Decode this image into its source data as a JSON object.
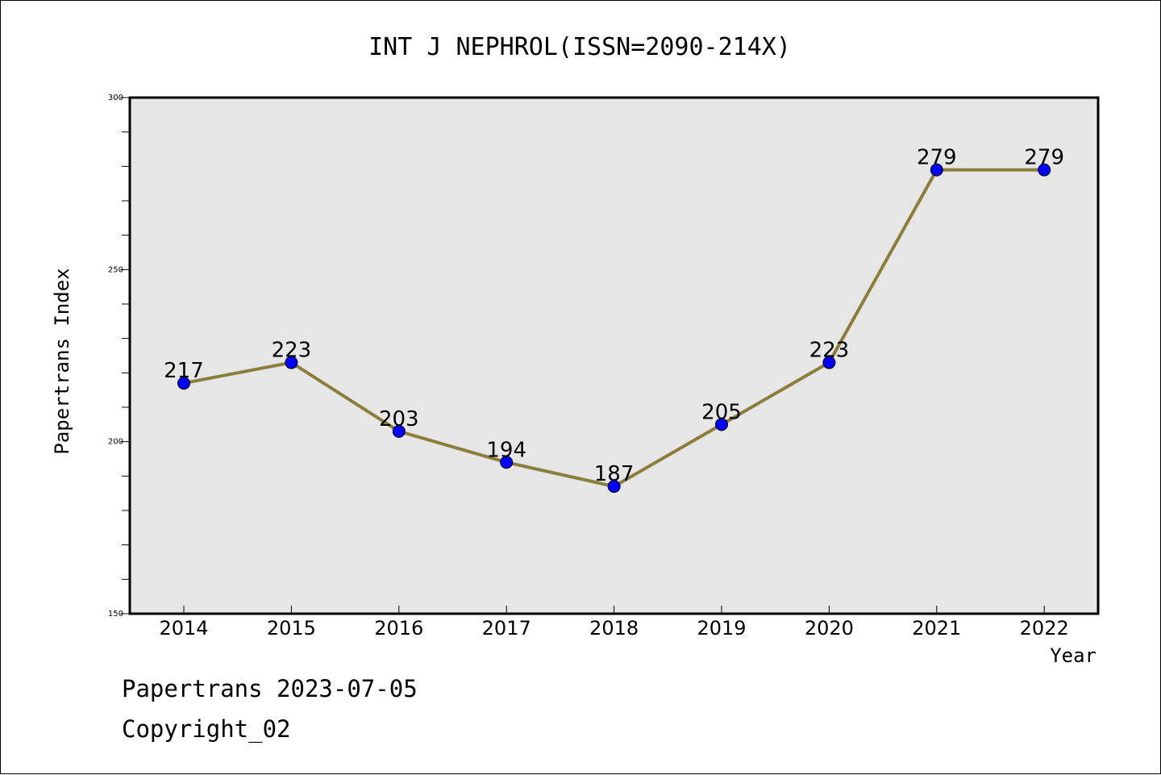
{
  "chart_data": {
    "type": "line",
    "title": "INT J NEPHROL(ISSN=2090-214X)",
    "xlabel": "Year",
    "ylabel": "Papertrans Index",
    "categories": [
      "2014",
      "2015",
      "2016",
      "2017",
      "2018",
      "2019",
      "2020",
      "2021",
      "2022"
    ],
    "values": [
      217,
      223,
      203,
      194,
      187,
      205,
      223,
      279,
      279
    ],
    "data_labels": [
      "217",
      "223",
      "203",
      "194",
      "187",
      "205",
      "223",
      "279",
      "279"
    ],
    "ylim": [
      150,
      300
    ],
    "yticks": [
      "150",
      "200",
      "250",
      "300"
    ],
    "ytick_values": [
      150,
      200,
      250,
      300
    ],
    "grid": false,
    "colors": {
      "line": "#8b7d3a",
      "marker": "#0000ff",
      "plot_background": "#e6e6e6"
    }
  },
  "footer": {
    "line1": "Papertrans 2023-07-05",
    "line2": "Copyright_02"
  }
}
